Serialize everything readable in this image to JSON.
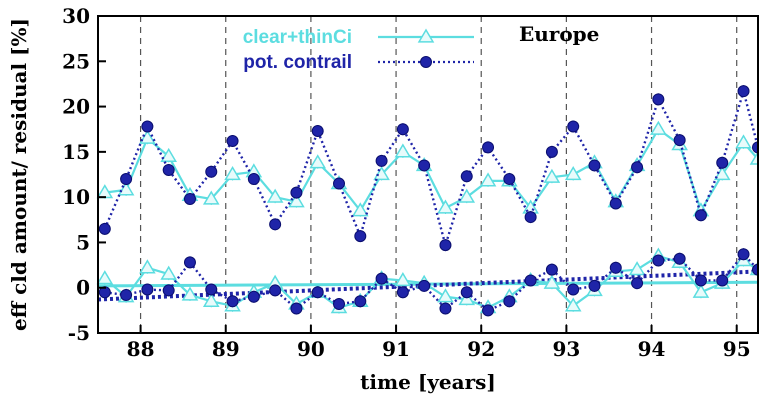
{
  "chart_data": {
    "type": "line",
    "annotation": "Europe",
    "xlabel": "time [years]",
    "ylabel": "eff cld amount/ residual [%]",
    "xlim": [
      87.5,
      95.25
    ],
    "ylim": [
      -5,
      30
    ],
    "xticks": [
      "88",
      "89",
      "90",
      "91",
      "92",
      "93",
      "94",
      "95"
    ],
    "yticks": [
      "-5",
      "0",
      "5",
      "10",
      "15",
      "20",
      "25",
      "30"
    ],
    "grid": "vertical dashed at years",
    "legend_position": "top-left",
    "colors": {
      "clear": "#5cdde0",
      "contrail": "#1f24a8"
    },
    "series": [
      {
        "name": "clear+thinCi",
        "marker": "triangle",
        "values": [
          [
            87.58,
            10.5
          ],
          [
            87.83,
            10.8
          ],
          [
            88.08,
            16.5
          ],
          [
            88.33,
            14.5
          ],
          [
            88.58,
            10.2
          ],
          [
            88.83,
            9.8
          ],
          [
            89.08,
            12.5
          ],
          [
            89.33,
            12.8
          ],
          [
            89.58,
            10.0
          ],
          [
            89.83,
            9.5
          ],
          [
            90.08,
            13.8
          ],
          [
            90.33,
            11.5
          ],
          [
            90.58,
            8.5
          ],
          [
            90.83,
            12.5
          ],
          [
            91.08,
            15.0
          ],
          [
            91.33,
            13.5
          ],
          [
            91.58,
            8.8
          ],
          [
            91.83,
            10.0
          ],
          [
            92.08,
            11.8
          ],
          [
            92.33,
            11.8
          ],
          [
            92.58,
            8.8
          ],
          [
            92.83,
            12.2
          ],
          [
            93.08,
            12.5
          ],
          [
            93.33,
            13.8
          ],
          [
            93.58,
            9.5
          ],
          [
            93.83,
            13.5
          ],
          [
            94.08,
            17.5
          ],
          [
            94.33,
            15.8
          ],
          [
            94.58,
            8.5
          ],
          [
            94.83,
            12.5
          ],
          [
            95.08,
            16.0
          ],
          [
            95.25,
            14.2
          ]
        ]
      },
      {
        "name": "pot. contrail",
        "marker": "circle",
        "values": [
          [
            87.58,
            6.5
          ],
          [
            87.83,
            12.0
          ],
          [
            88.08,
            17.8
          ],
          [
            88.33,
            13.0
          ],
          [
            88.58,
            9.8
          ],
          [
            88.83,
            12.8
          ],
          [
            89.08,
            16.2
          ],
          [
            89.33,
            12.0
          ],
          [
            89.58,
            7.0
          ],
          [
            89.83,
            10.5
          ],
          [
            90.08,
            17.3
          ],
          [
            90.33,
            11.5
          ],
          [
            90.58,
            5.7
          ],
          [
            90.83,
            14.0
          ],
          [
            91.08,
            17.5
          ],
          [
            91.33,
            13.5
          ],
          [
            91.58,
            4.7
          ],
          [
            91.83,
            12.3
          ],
          [
            92.08,
            15.5
          ],
          [
            92.33,
            12.0
          ],
          [
            92.58,
            7.8
          ],
          [
            92.83,
            15.0
          ],
          [
            93.08,
            17.8
          ],
          [
            93.33,
            13.5
          ],
          [
            93.58,
            9.3
          ],
          [
            93.83,
            13.3
          ],
          [
            94.08,
            20.8
          ],
          [
            94.33,
            16.3
          ],
          [
            94.58,
            8.0
          ],
          [
            94.83,
            13.8
          ],
          [
            95.08,
            21.7
          ],
          [
            95.25,
            15.5
          ]
        ]
      },
      {
        "name": "",
        "marker": "triangle",
        "role": "clear+thinCi residual",
        "values": [
          [
            87.58,
            1.0
          ],
          [
            87.83,
            -1.0
          ],
          [
            88.08,
            2.2
          ],
          [
            88.33,
            1.5
          ],
          [
            88.58,
            -0.8
          ],
          [
            88.83,
            -1.5
          ],
          [
            89.08,
            -2.0
          ],
          [
            89.33,
            -0.5
          ],
          [
            89.58,
            0.5
          ],
          [
            89.83,
            -1.8
          ],
          [
            90.08,
            -0.5
          ],
          [
            90.33,
            -2.2
          ],
          [
            90.58,
            -1.5
          ],
          [
            90.83,
            1.0
          ],
          [
            91.08,
            0.8
          ],
          [
            91.33,
            0.5
          ],
          [
            91.58,
            -1.0
          ],
          [
            91.83,
            -1.3
          ],
          [
            92.08,
            -2.2
          ],
          [
            92.33,
            -1.0
          ],
          [
            92.58,
            0.8
          ],
          [
            92.83,
            0.5
          ],
          [
            93.08,
            -2.0
          ],
          [
            93.33,
            -0.3
          ],
          [
            93.58,
            1.8
          ],
          [
            93.83,
            2.0
          ],
          [
            94.08,
            3.5
          ],
          [
            94.33,
            2.8
          ],
          [
            94.58,
            -0.5
          ],
          [
            94.83,
            0.5
          ],
          [
            95.08,
            3.0
          ],
          [
            95.25,
            2.0
          ]
        ]
      },
      {
        "name": "",
        "marker": "circle",
        "role": "pot. contrail residual",
        "values": [
          [
            87.58,
            -0.5
          ],
          [
            87.83,
            -0.8
          ],
          [
            88.08,
            -0.2
          ],
          [
            88.33,
            -0.3
          ],
          [
            88.58,
            2.8
          ],
          [
            88.83,
            -0.2
          ],
          [
            89.08,
            -1.5
          ],
          [
            89.33,
            -1.0
          ],
          [
            89.58,
            -0.3
          ],
          [
            89.83,
            -2.3
          ],
          [
            90.08,
            -0.5
          ],
          [
            90.33,
            -1.8
          ],
          [
            90.58,
            -1.5
          ],
          [
            90.83,
            1.0
          ],
          [
            91.08,
            -0.5
          ],
          [
            91.33,
            0.2
          ],
          [
            91.58,
            -2.3
          ],
          [
            91.83,
            -0.5
          ],
          [
            92.08,
            -2.5
          ],
          [
            92.33,
            -1.5
          ],
          [
            92.58,
            0.8
          ],
          [
            92.83,
            2.0
          ],
          [
            93.08,
            -0.2
          ],
          [
            93.33,
            0.2
          ],
          [
            93.58,
            2.2
          ],
          [
            93.83,
            0.5
          ],
          [
            94.08,
            3.0
          ],
          [
            94.33,
            3.2
          ],
          [
            94.58,
            0.8
          ],
          [
            94.83,
            0.8
          ],
          [
            95.08,
            3.7
          ],
          [
            95.25,
            2.0
          ]
        ]
      }
    ],
    "trend_lines": [
      {
        "series": "clear+thinCi",
        "values": [
          [
            87.5,
            0.2
          ],
          [
            95.25,
            0.6
          ]
        ]
      },
      {
        "series": "pot. contrail",
        "values": [
          [
            87.5,
            -1.3
          ],
          [
            95.25,
            1.8
          ]
        ]
      }
    ]
  }
}
